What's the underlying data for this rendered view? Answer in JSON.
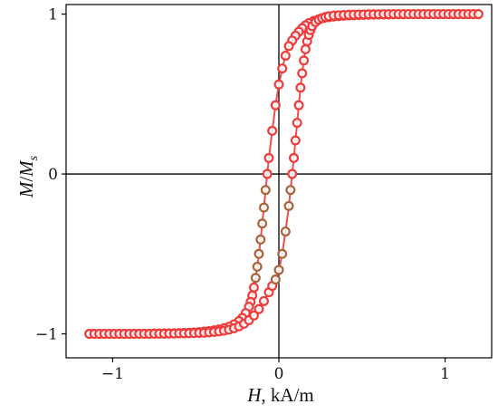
{
  "chart_data": {
    "type": "scatter",
    "title": "",
    "xlabel": {
      "symbol": "H",
      "unit": ", kA/m"
    },
    "ylabel": {
      "symbol1": "M",
      "slash": "/",
      "symbol2": "M",
      "subscript": "s"
    },
    "xlim": [
      -1.28,
      1.28
    ],
    "ylim": [
      -1.15,
      1.06
    ],
    "xticks": [
      {
        "value": -1,
        "label": "−1"
      },
      {
        "value": 0,
        "label": "0"
      },
      {
        "value": 1,
        "label": "1"
      }
    ],
    "yticks": [
      {
        "value": -1,
        "label": "−1"
      },
      {
        "value": 0,
        "label": "0"
      },
      {
        "value": 1,
        "label": "1"
      }
    ],
    "grid": false,
    "zero_lines": true,
    "legend": "none",
    "marker": "open-circle",
    "colors": {
      "primary": "#ee3b3b",
      "mid": "#a8643c",
      "axis": "#000000"
    },
    "series": [
      {
        "branch": "descending",
        "x": [
          1.2,
          1.17,
          1.14,
          1.11,
          1.08,
          1.05,
          1.02,
          0.99,
          0.96,
          0.93,
          0.9,
          0.87,
          0.84,
          0.81,
          0.78,
          0.75,
          0.72,
          0.69,
          0.66,
          0.63,
          0.6,
          0.57,
          0.54,
          0.51,
          0.48,
          0.45,
          0.42,
          0.39,
          0.36,
          0.33,
          0.3,
          0.27,
          0.24,
          0.21,
          0.18,
          0.16,
          0.14,
          0.12,
          0.1,
          0.08,
          0.06,
          0.04,
          0.02,
          0.0,
          -0.02,
          -0.04,
          -0.06,
          -0.07,
          -0.08,
          -0.09,
          -0.1,
          -0.11,
          -0.12,
          -0.13,
          -0.14,
          -0.15,
          -0.16,
          -0.17,
          -0.18,
          -0.2,
          -0.22,
          -0.24,
          -0.27,
          -0.3,
          -0.33,
          -0.36,
          -0.39,
          -0.42,
          -0.45,
          -0.48,
          -0.51,
          -0.54,
          -0.57,
          -0.6,
          -0.63,
          -0.66,
          -0.69,
          -0.72,
          -0.75,
          -0.78,
          -0.81,
          -0.84,
          -0.87,
          -0.9,
          -0.93,
          -0.96,
          -0.99,
          -1.02,
          -1.05,
          -1.08,
          -1.11,
          -1.14
        ],
        "y": [
          1.0,
          1.0,
          1.0,
          1.0,
          1.0,
          1.0,
          1.0,
          1.0,
          1.0,
          1.0,
          1.0,
          1.0,
          1.0,
          1.0,
          1.0,
          0.999,
          0.999,
          0.999,
          0.998,
          0.998,
          0.997,
          0.997,
          0.996,
          0.995,
          0.994,
          0.993,
          0.992,
          0.99,
          0.988,
          0.985,
          0.981,
          0.976,
          0.968,
          0.958,
          0.944,
          0.93,
          0.912,
          0.89,
          0.865,
          0.835,
          0.8,
          0.74,
          0.66,
          0.56,
          0.43,
          0.27,
          0.1,
          0.0,
          -0.1,
          -0.21,
          -0.31,
          -0.41,
          -0.5,
          -0.58,
          -0.65,
          -0.71,
          -0.76,
          -0.8,
          -0.83,
          -0.87,
          -0.9,
          -0.92,
          -0.94,
          -0.955,
          -0.965,
          -0.972,
          -0.978,
          -0.983,
          -0.986,
          -0.989,
          -0.991,
          -0.993,
          -0.994,
          -0.995,
          -0.996,
          -0.997,
          -0.997,
          -0.998,
          -0.998,
          -0.999,
          -0.999,
          -0.999,
          -1.0,
          -1.0,
          -1.0,
          -1.0,
          -1.0,
          -1.0,
          -1.0,
          -1.0,
          -1.0,
          -1.0
        ]
      },
      {
        "branch": "ascending",
        "x": [
          -1.14,
          -1.11,
          -1.08,
          -1.05,
          -1.02,
          -0.99,
          -0.96,
          -0.93,
          -0.9,
          -0.87,
          -0.84,
          -0.81,
          -0.78,
          -0.75,
          -0.72,
          -0.69,
          -0.66,
          -0.63,
          -0.6,
          -0.57,
          -0.54,
          -0.51,
          -0.48,
          -0.45,
          -0.42,
          -0.39,
          -0.36,
          -0.33,
          -0.3,
          -0.27,
          -0.24,
          -0.21,
          -0.18,
          -0.15,
          -0.12,
          -0.09,
          -0.06,
          -0.04,
          -0.02,
          0.0,
          0.02,
          0.04,
          0.06,
          0.07,
          0.08,
          0.09,
          0.1,
          0.11,
          0.12,
          0.13,
          0.14,
          0.15,
          0.16,
          0.17,
          0.18,
          0.19,
          0.2,
          0.22,
          0.24,
          0.26,
          0.28,
          0.3,
          0.33,
          0.36,
          0.39,
          0.42,
          0.45,
          0.48,
          0.51,
          0.54,
          0.57,
          0.6,
          0.63,
          0.66,
          0.69,
          0.72,
          0.75,
          0.78,
          0.81,
          0.84,
          0.87,
          0.9,
          0.93,
          0.96,
          0.99,
          1.02,
          1.05,
          1.08,
          1.11,
          1.14,
          1.17,
          1.2
        ],
        "y": [
          -1.0,
          -1.0,
          -1.0,
          -1.0,
          -1.0,
          -1.0,
          -1.0,
          -1.0,
          -1.0,
          -1.0,
          -1.0,
          -1.0,
          -1.0,
          -0.999,
          -0.999,
          -0.999,
          -0.998,
          -0.998,
          -0.997,
          -0.997,
          -0.996,
          -0.995,
          -0.994,
          -0.993,
          -0.991,
          -0.988,
          -0.985,
          -0.98,
          -0.974,
          -0.965,
          -0.953,
          -0.937,
          -0.915,
          -0.885,
          -0.845,
          -0.795,
          -0.74,
          -0.7,
          -0.66,
          -0.6,
          -0.5,
          -0.36,
          -0.2,
          -0.1,
          0.0,
          0.1,
          0.21,
          0.32,
          0.43,
          0.54,
          0.63,
          0.71,
          0.78,
          0.83,
          0.87,
          0.9,
          0.925,
          0.95,
          0.965,
          0.975,
          0.982,
          0.987,
          0.991,
          0.993,
          0.995,
          0.996,
          0.997,
          0.998,
          0.998,
          0.999,
          0.999,
          0.999,
          1.0,
          1.0,
          1.0,
          1.0,
          1.0,
          1.0,
          1.0,
          1.0,
          1.0,
          1.0,
          1.0,
          1.0,
          1.0,
          1.0,
          1.0,
          1.0,
          1.0,
          1.0,
          1.0,
          1.0
        ]
      }
    ]
  }
}
